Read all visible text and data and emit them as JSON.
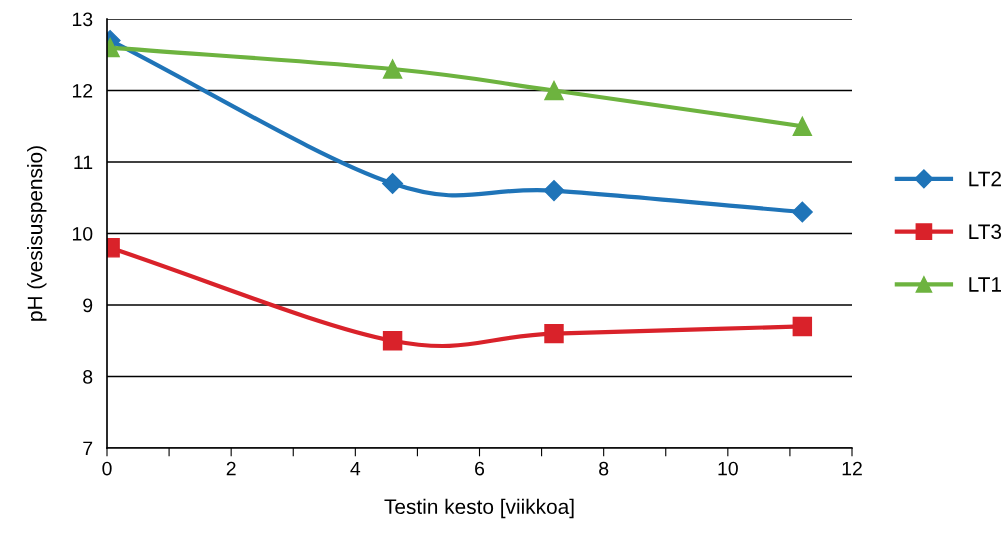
{
  "chart_data": {
    "type": "line",
    "xlabel": "Testin kesto [viikkoa]",
    "ylabel": "pH (vesisuspensio)",
    "xlim": [
      0,
      12
    ],
    "ylim": [
      7,
      13
    ],
    "xticks": [
      0,
      {
        "value": 1,
        "label": null
      },
      2,
      {
        "value": 3,
        "label": null
      },
      4,
      {
        "value": 5,
        "label": null
      },
      6,
      {
        "value": 7,
        "label": null
      },
      8,
      {
        "value": 9,
        "label": null
      },
      10,
      {
        "value": 11,
        "label": null
      },
      12
    ],
    "yticks": [
      7,
      8,
      9,
      10,
      11,
      12,
      13
    ],
    "grid": "y",
    "legend": "right",
    "line_style": "solid",
    "series": [
      {
        "name": "LT2",
        "color": "#1f74b8",
        "marker": "diamond",
        "x": [
          0.05,
          4.6,
          7.2,
          11.2
        ],
        "values": [
          12.7,
          10.7,
          10.6,
          10.3
        ]
      },
      {
        "name": "LT3",
        "color": "#d9222a",
        "marker": "square",
        "x": [
          0.05,
          4.6,
          7.2,
          11.2
        ],
        "values": [
          9.8,
          8.5,
          8.6,
          8.7
        ]
      },
      {
        "name": "LT1",
        "color": "#6db33f",
        "marker": "triangle",
        "x": [
          0.05,
          4.6,
          7.2,
          11.2
        ],
        "values": [
          12.6,
          12.3,
          12.0,
          11.5
        ]
      }
    ]
  }
}
